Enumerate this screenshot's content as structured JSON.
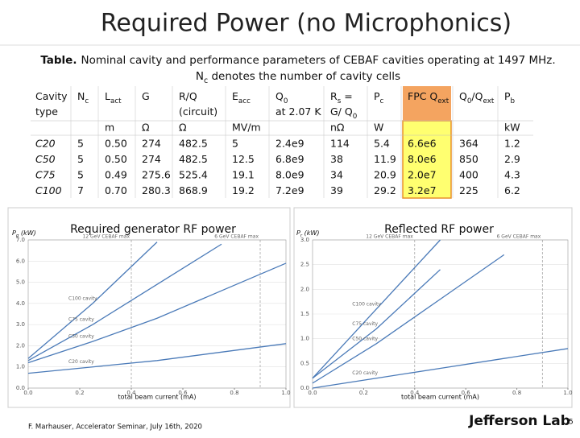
{
  "title": "Required Power (no Microphonics)",
  "caption": {
    "label": "Table.",
    "line1": "Nominal cavity and performance parameters of CEBAF cavities operating at 1497 MHz.",
    "line2": [
      {
        "t": "N"
      },
      {
        "t": "c",
        "sub": true
      },
      {
        "t": " denotes the number of cavity cells"
      }
    ]
  },
  "table": {
    "header": [
      [
        [
          {
            "t": "Cavity"
          }
        ],
        [
          {
            "t": "type"
          }
        ]
      ],
      [
        [
          {
            "t": "N"
          },
          {
            "t": "c",
            "sub": true
          }
        ]
      ],
      [
        [
          {
            "t": "L"
          },
          {
            "t": "act",
            "sub": true
          }
        ]
      ],
      [
        [
          {
            "t": "G"
          }
        ]
      ],
      [
        [
          {
            "t": "R/Q"
          }
        ],
        [
          {
            "t": "(circuit)"
          }
        ]
      ],
      [
        [
          {
            "t": "E"
          },
          {
            "t": "acc",
            "sub": true
          }
        ]
      ],
      [
        [
          {
            "t": "Q"
          },
          {
            "t": "0",
            "sub": true
          }
        ],
        [
          {
            "t": "at 2.07 K"
          }
        ]
      ],
      [
        [
          {
            "t": "R"
          },
          {
            "t": "s",
            "sub": true
          },
          {
            "t": " ="
          }
        ],
        [
          {
            "t": "G/ Q"
          },
          {
            "t": "0",
            "sub": true
          }
        ]
      ],
      [
        [
          {
            "t": "P"
          },
          {
            "t": "c",
            "sub": true
          }
        ]
      ],
      [
        [
          {
            "t": "FPC Q"
          },
          {
            "t": "ext",
            "sub": true
          }
        ]
      ],
      [
        [
          {
            "t": "Q"
          },
          {
            "t": "0",
            "sub": true
          },
          {
            "t": "/Q"
          },
          {
            "t": "ext",
            "sub": true
          }
        ]
      ],
      [
        [
          {
            "t": "P"
          },
          {
            "t": "b",
            "sub": true
          }
        ]
      ]
    ],
    "units": [
      null,
      null,
      "m",
      "Ω",
      "Ω",
      "MV/m",
      null,
      "nΩ",
      "W",
      null,
      null,
      "kW"
    ],
    "rows": [
      [
        "C20",
        "5",
        "0.50",
        "274",
        "482.5",
        "5",
        "2.4e9",
        "114",
        "5.4",
        "6.6e6",
        "364",
        "1.2"
      ],
      [
        "C50",
        "5",
        "0.50",
        "274",
        "482.5",
        "12.5",
        "6.8e9",
        "38",
        "11.9",
        "8.0e6",
        "850",
        "2.9"
      ],
      [
        "C75",
        "5",
        "0.49",
        "275.6",
        "525.4",
        "19.1",
        "8.0e9",
        "34",
        "20.9",
        "2.0e7",
        "400",
        "4.3"
      ],
      [
        "C100",
        "7",
        "0.70",
        "280.3",
        "868.9",
        "19.2",
        "7.2e9",
        "39",
        "29.2",
        "3.2e7",
        "225",
        "6.2"
      ]
    ]
  },
  "charts": [
    {
      "type": "line",
      "title": "Required generator RF power",
      "y_label": [
        {
          "t": "P"
        },
        {
          "t": "g",
          "sub": true
        },
        {
          "t": " (kW)"
        }
      ],
      "x_label": "total beam current (mA)",
      "x": [
        0,
        0.25,
        0.5,
        0.75,
        1.0
      ],
      "series": [
        {
          "name": "C100 cavity",
          "color": "#4a7ab8",
          "values": [
            1.4,
            4.0,
            6.9,
            null,
            null
          ]
        },
        {
          "name": "C75 cavity",
          "color": "#4a7ab8",
          "values": [
            1.3,
            3.0,
            4.9,
            6.8,
            null
          ]
        },
        {
          "name": "C50 cavity",
          "color": "#4a7ab8",
          "values": [
            1.2,
            2.2,
            3.3,
            4.6,
            5.9
          ]
        },
        {
          "name": "C20 cavity",
          "color": "#4a7ab8",
          "values": [
            0.7,
            1.0,
            1.3,
            1.7,
            2.1
          ]
        }
      ],
      "xlim": [
        0,
        1.0
      ],
      "ylim": [
        0,
        7.0
      ],
      "xticks": [
        {
          "value": 0,
          "label": "0.0"
        },
        {
          "value": 0.2,
          "label": "0.2"
        },
        {
          "value": 0.4,
          "label": "0.4"
        },
        {
          "value": 0.6,
          "label": "0.6"
        },
        {
          "value": 0.8,
          "label": "0.8"
        },
        {
          "value": 1.0,
          "label": "1.0"
        }
      ],
      "yticks": [
        {
          "value": 0,
          "label": "0.0"
        },
        {
          "value": 1,
          "label": "1.0"
        },
        {
          "value": 2,
          "label": "2.0"
        },
        {
          "value": 3,
          "label": "3.0"
        },
        {
          "value": 4,
          "label": "4.0"
        },
        {
          "value": 5,
          "label": "5.0"
        },
        {
          "value": 6,
          "label": "6.0"
        },
        {
          "value": 7,
          "label": "7.0"
        }
      ],
      "markers": [
        {
          "value": 0.4,
          "label": "12 GeV CEBAF max"
        },
        {
          "value": 0.9,
          "label": "6 GeV CEBAF max"
        }
      ],
      "grid": true
    },
    {
      "type": "line",
      "title": "Reflected RF power",
      "y_label": [
        {
          "t": "P"
        },
        {
          "t": "r",
          "sub": true
        },
        {
          "t": " (kW)"
        }
      ],
      "x_label": "total beam current (mA)",
      "x": [
        0,
        0.25,
        0.5,
        0.75,
        1.0
      ],
      "series": [
        {
          "name": "C100 cavity",
          "color": "#4a7ab8",
          "values": [
            0.2,
            1.6,
            3.0,
            null,
            null
          ]
        },
        {
          "name": "C75 cavity",
          "color": "#4a7ab8",
          "values": [
            0.2,
            1.2,
            2.4,
            null,
            null
          ]
        },
        {
          "name": "C50 cavity",
          "color": "#4a7ab8",
          "values": [
            0.1,
            0.9,
            1.8,
            2.7,
            null
          ]
        },
        {
          "name": "C20 cavity",
          "color": "#4a7ab8",
          "values": [
            0.0,
            0.2,
            0.4,
            0.6,
            0.8
          ]
        }
      ],
      "xlim": [
        0,
        1.0
      ],
      "ylim": [
        0,
        3.0
      ],
      "xticks": [
        {
          "value": 0,
          "label": "0.0"
        },
        {
          "value": 0.2,
          "label": "0.2"
        },
        {
          "value": 0.4,
          "label": "0.4"
        },
        {
          "value": 0.6,
          "label": "0.6"
        },
        {
          "value": 0.8,
          "label": "0.8"
        },
        {
          "value": 1.0,
          "label": "1.0"
        }
      ],
      "yticks": [
        {
          "value": 0,
          "label": "0.0"
        },
        {
          "value": 0.5,
          "label": "0.5"
        },
        {
          "value": 1.0,
          "label": "1.0"
        },
        {
          "value": 1.5,
          "label": "1.5"
        },
        {
          "value": 2.0,
          "label": "2.0"
        },
        {
          "value": 2.5,
          "label": "2.5"
        },
        {
          "value": 3.0,
          "label": "3.0"
        }
      ],
      "markers": [
        {
          "value": 0.4,
          "label": "12 GeV CEBAF max"
        },
        {
          "value": 0.9,
          "label": "6 GeV CEBAF max"
        }
      ],
      "grid": true
    }
  ],
  "footer": {
    "author": "F. Marhauser, Accelerator Seminar, July 16th, 2020",
    "logo": "Jefferson Lab",
    "page": "5"
  }
}
